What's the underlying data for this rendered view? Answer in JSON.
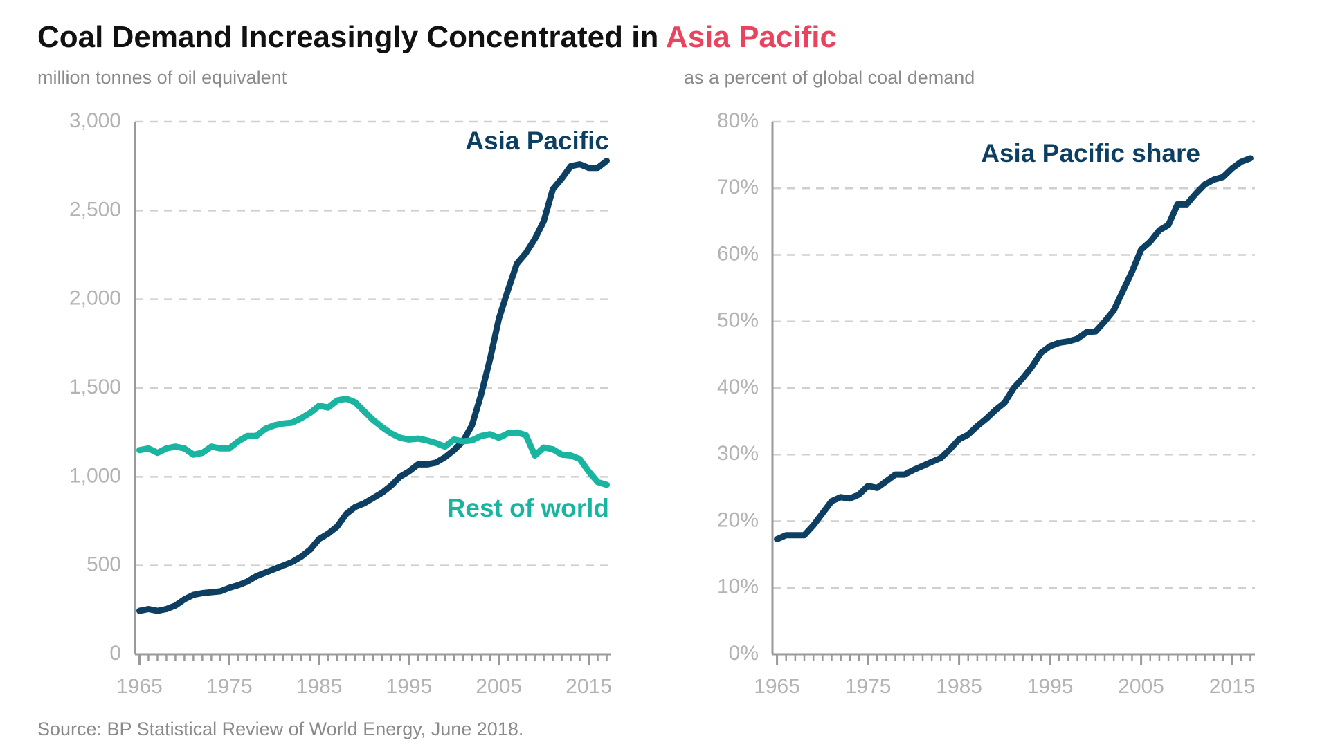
{
  "title": "Coal Demand Increasingly Concentrated in",
  "title_highlight": "Asia Pacific",
  "source": "Source: BP Statistical Review of World Energy, June 2018.",
  "chart_data": [
    {
      "type": "line",
      "subtitle": "million tonnes of oil equivalent",
      "x": [
        1965,
        1966,
        1967,
        1968,
        1969,
        1970,
        1971,
        1972,
        1973,
        1974,
        1975,
        1976,
        1977,
        1978,
        1979,
        1980,
        1981,
        1982,
        1983,
        1984,
        1985,
        1986,
        1987,
        1988,
        1989,
        1990,
        1991,
        1992,
        1993,
        1994,
        1995,
        1996,
        1997,
        1998,
        1999,
        2000,
        2001,
        2002,
        2003,
        2004,
        2005,
        2006,
        2007,
        2008,
        2009,
        2010,
        2011,
        2012,
        2013,
        2014,
        2015,
        2016,
        2017
      ],
      "series": [
        {
          "name": "Asia Pacific",
          "color": "#0d3f63",
          "values": [
            245,
            255,
            245,
            255,
            275,
            310,
            335,
            345,
            350,
            355,
            375,
            390,
            410,
            440,
            460,
            480,
            500,
            520,
            550,
            590,
            650,
            680,
            720,
            790,
            830,
            850,
            880,
            910,
            950,
            1000,
            1030,
            1070,
            1070,
            1080,
            1110,
            1150,
            1200,
            1290,
            1460,
            1660,
            1890,
            2050,
            2200,
            2260,
            2340,
            2440,
            2620,
            2680,
            2750,
            2760,
            2740,
            2740,
            2780
          ]
        },
        {
          "name": "Rest of world",
          "color": "#1ab5a0",
          "values": [
            1150,
            1160,
            1135,
            1160,
            1170,
            1160,
            1125,
            1135,
            1170,
            1160,
            1160,
            1200,
            1230,
            1230,
            1270,
            1290,
            1300,
            1305,
            1330,
            1360,
            1400,
            1390,
            1430,
            1440,
            1420,
            1370,
            1320,
            1280,
            1245,
            1220,
            1210,
            1215,
            1205,
            1190,
            1170,
            1210,
            1200,
            1205,
            1230,
            1240,
            1220,
            1245,
            1250,
            1235,
            1120,
            1165,
            1155,
            1125,
            1120,
            1100,
            1030,
            970,
            955
          ]
        }
      ],
      "xlim": [
        1964.5,
        2017.5
      ],
      "xticks": [
        1965,
        1975,
        1985,
        1995,
        2005,
        2015
      ],
      "ylim": [
        0,
        3000
      ],
      "yticks": [
        0,
        500,
        {
          "value": 1000,
          "label": "1,000"
        },
        {
          "value": 1500,
          "label": "1,500"
        },
        {
          "value": 2000,
          "label": "2,000"
        },
        {
          "value": 2500,
          "label": "2,500"
        },
        {
          "value": 3000,
          "label": "3,000"
        }
      ],
      "grid": true
    },
    {
      "type": "line",
      "subtitle": "as a percent of global coal demand",
      "x": [
        1965,
        1966,
        1967,
        1968,
        1969,
        1970,
        1971,
        1972,
        1973,
        1974,
        1975,
        1976,
        1977,
        1978,
        1979,
        1980,
        1981,
        1982,
        1983,
        1984,
        1985,
        1986,
        1987,
        1988,
        1989,
        1990,
        1991,
        1992,
        1993,
        1994,
        1995,
        1996,
        1997,
        1998,
        1999,
        2000,
        2001,
        2002,
        2003,
        2004,
        2005,
        2006,
        2007,
        2008,
        2009,
        2010,
        2011,
        2012,
        2013,
        2014,
        2015,
        2016,
        2017
      ],
      "series": [
        {
          "name": "Asia Pacific share",
          "color": "#0d3f63",
          "values": [
            17.3,
            17.9,
            17.9,
            17.9,
            19.4,
            21.2,
            23.0,
            23.6,
            23.4,
            24.0,
            25.3,
            25.0,
            26.0,
            27.0,
            27.0,
            27.7,
            28.3,
            28.9,
            29.5,
            30.8,
            32.3,
            33.0,
            34.3,
            35.4,
            36.7,
            37.8,
            40.0,
            41.5,
            43.2,
            45.3,
            46.3,
            46.8,
            47.0,
            47.4,
            48.4,
            48.5,
            50.0,
            51.7,
            54.6,
            57.5,
            60.8,
            62.0,
            63.7,
            64.5,
            67.6,
            67.6,
            69.2,
            70.6,
            71.3,
            71.7,
            73.0,
            74.0,
            74.5
          ]
        }
      ],
      "xlim": [
        1964.5,
        2017.5
      ],
      "xticks": [
        1965,
        1975,
        1985,
        1995,
        2005,
        2015
      ],
      "ylim": [
        0,
        80
      ],
      "yticks": [
        {
          "value": 0,
          "label": "0%"
        },
        {
          "value": 10,
          "label": "10%"
        },
        {
          "value": 20,
          "label": "20%"
        },
        {
          "value": 30,
          "label": "30%"
        },
        {
          "value": 40,
          "label": "40%"
        },
        {
          "value": 50,
          "label": "50%"
        },
        {
          "value": 60,
          "label": "60%"
        },
        {
          "value": 70,
          "label": "70%"
        },
        {
          "value": 80,
          "label": "80%"
        }
      ],
      "grid": true
    }
  ]
}
